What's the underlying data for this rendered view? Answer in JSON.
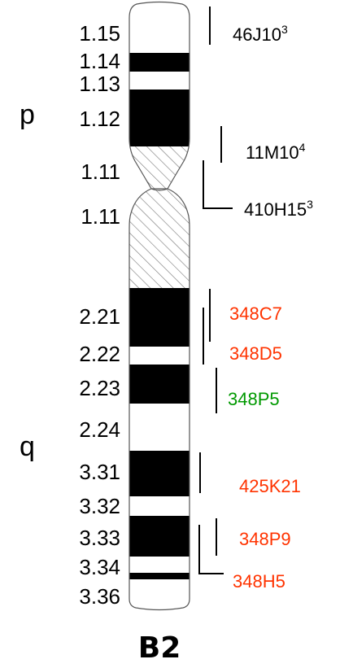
{
  "chromosome": {
    "name": "B2",
    "arms": {
      "p": "p",
      "q": "q"
    },
    "bands": [
      {
        "label": "1.15",
        "stain": "white"
      },
      {
        "label": "1.14",
        "stain": "black"
      },
      {
        "label": "1.13",
        "stain": "white"
      },
      {
        "label": "1.12",
        "stain": "black"
      },
      {
        "label": "1.11",
        "stain": "hatched"
      },
      {
        "label": "1.11",
        "stain": "hatched"
      },
      {
        "label": "2.21",
        "stain": "black"
      },
      {
        "label": "2.22",
        "stain": "white"
      },
      {
        "label": "2.23",
        "stain": "black"
      },
      {
        "label": "2.24",
        "stain": "white"
      },
      {
        "label": "3.31",
        "stain": "black"
      },
      {
        "label": "3.32",
        "stain": "white"
      },
      {
        "label": "3.33",
        "stain": "black"
      },
      {
        "label": "3.34",
        "stain": "white"
      },
      {
        "label": "3.36",
        "stain": "white"
      }
    ],
    "clones": [
      {
        "name": "46J10",
        "sup": "3",
        "color": "#000000"
      },
      {
        "name": "11M10",
        "sup": "4",
        "color": "#000000"
      },
      {
        "name": "410H15",
        "sup": "3",
        "color": "#000000"
      },
      {
        "name": "348C7",
        "sup": "",
        "color": "#ff3300"
      },
      {
        "name": "348D5",
        "sup": "",
        "color": "#ff3300"
      },
      {
        "name": "348P5",
        "sup": "",
        "color": "#009900"
      },
      {
        "name": "425K21",
        "sup": "",
        "color": "#ff3300"
      },
      {
        "name": "348P9",
        "sup": "",
        "color": "#ff3300"
      },
      {
        "name": "348H5",
        "sup": "",
        "color": "#ff3300"
      }
    ]
  }
}
